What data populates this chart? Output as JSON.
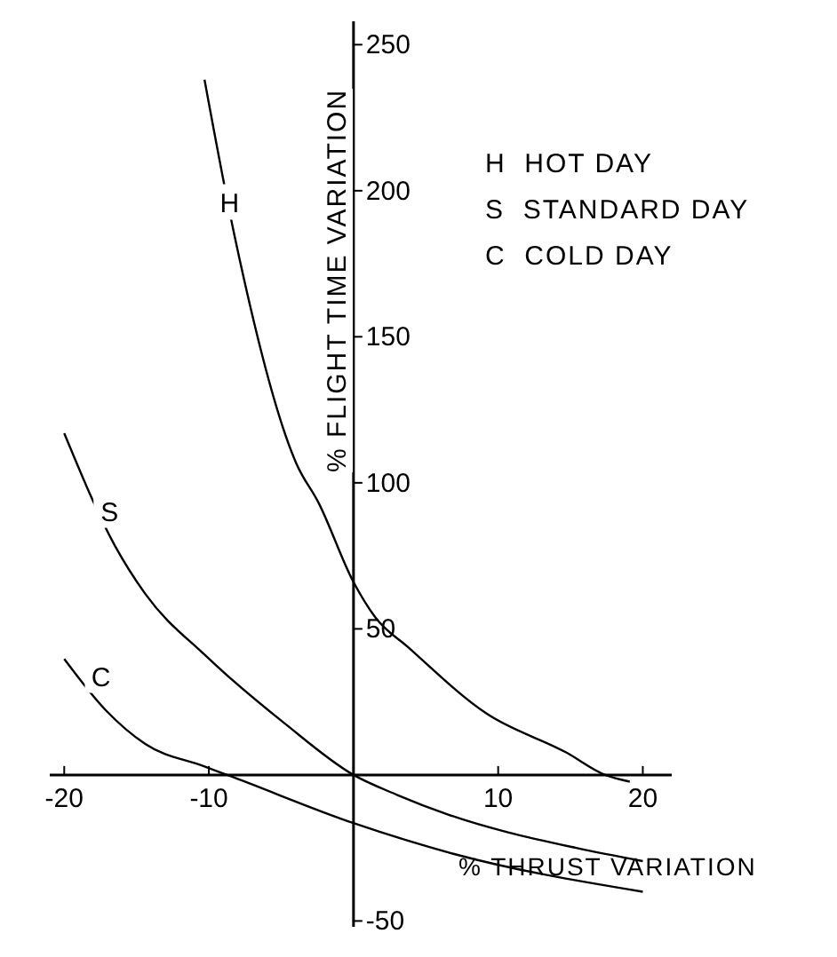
{
  "chart_data": {
    "type": "line",
    "xlabel": "% THRUST VARIATION",
    "ylabel": "% FLIGHT TIME VARIATION",
    "xlim": [
      -21,
      22
    ],
    "ylim": [
      -52,
      258
    ],
    "xticks": [
      -20,
      -10,
      {
        "value": 0,
        "label": null
      },
      10,
      20
    ],
    "yticks": [
      -50,
      {
        "value": 0,
        "label": null
      },
      50,
      100,
      150,
      200,
      250
    ],
    "marker": "none",
    "line_style": "solid",
    "annotations": [
      "H  HOT DAY",
      "S  STANDARD DAY",
      "C  COLD DAY"
    ],
    "series": [
      {
        "name": "H",
        "color": "#000000",
        "x": [
          -10.3,
          -8.2,
          -3.95,
          -2.4,
          0,
          1.5,
          3.8,
          9.2,
          14.7,
          17.4,
          19.1
        ],
        "values": [
          238,
          184,
          106.6,
          93,
          66,
          54,
          43.6,
          21,
          7.7,
          0,
          -2.3
        ]
      },
      {
        "name": "S",
        "color": "#000000",
        "x": [
          -20,
          -16.5,
          -14.4,
          -10.2,
          -4.7,
          0,
          3,
          6.5,
          15.4,
          20
        ],
        "values": [
          117,
          78.5,
          62,
          40.7,
          17.4,
          0,
          -6.8,
          -13.5,
          -25,
          -29.5
        ]
      },
      {
        "name": "C",
        "color": "#000000",
        "x": [
          -20,
          -17.1,
          -14.4,
          -10.3,
          -8.2,
          0,
          6.9,
          20
        ],
        "values": [
          39.7,
          22,
          10.6,
          2.9,
          -1,
          -16.5,
          -27,
          -40
        ]
      }
    ]
  }
}
